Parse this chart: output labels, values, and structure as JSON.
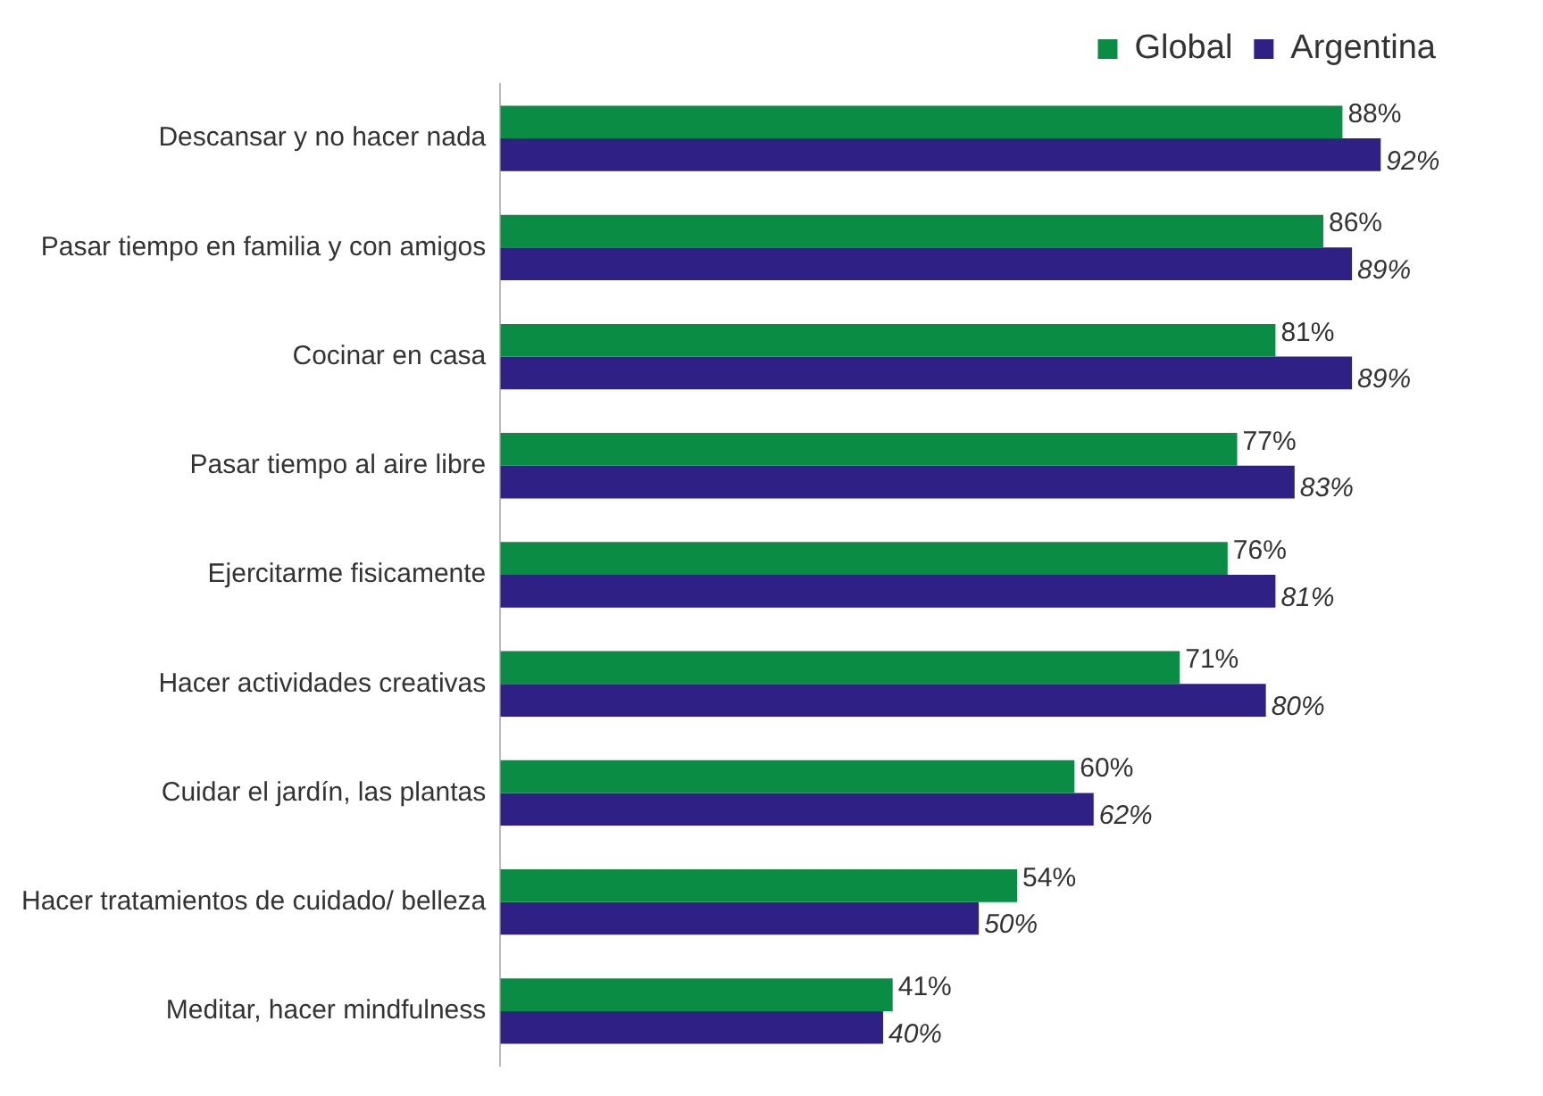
{
  "chart_data": {
    "type": "bar",
    "orientation": "horizontal",
    "categories": [
      "Descansar y no hacer nada",
      "Pasar tiempo en familia y con amigos",
      "Cocinar en casa",
      "Pasar tiempo al aire libre",
      "Ejercitarme fisicamente",
      "Hacer actividades creativas",
      "Cuidar el jardín, las plantas",
      "Hacer tratamientos de cuidado/ belleza",
      "Meditar, hacer mindfulness"
    ],
    "series": [
      {
        "name": "Global",
        "color": "#0b8c45",
        "values": [
          88,
          86,
          81,
          77,
          76,
          71,
          60,
          54,
          41
        ],
        "value_labels": [
          "88%",
          "86%",
          "81%",
          "77%",
          "76%",
          "71%",
          "60%",
          "54%",
          "41%"
        ]
      },
      {
        "name": "Argentina",
        "color": "#2f2086",
        "values": [
          92,
          89,
          89,
          83,
          81,
          80,
          62,
          50,
          40
        ],
        "value_labels": [
          "92%",
          "89%",
          "89%",
          "83%",
          "81%",
          "80%",
          "62%",
          "50%",
          "40%"
        ]
      }
    ],
    "tick_labels": "y",
    "grid": false,
    "legend": "top"
  }
}
